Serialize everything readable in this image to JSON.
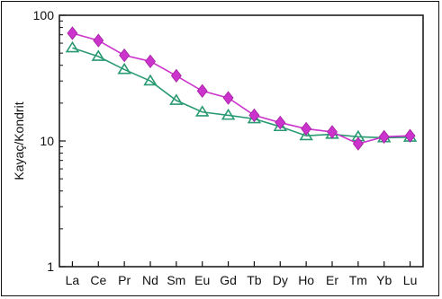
{
  "chart_data": {
    "type": "line",
    "title": "",
    "xlabel": "",
    "ylabel": "Kayaç/Kondrit",
    "y_scale": "log",
    "ylim": [
      1,
      100
    ],
    "y_ticks": [
      "1",
      "10",
      "100"
    ],
    "categories": [
      "La",
      "Ce",
      "Pr",
      "Nd",
      "Sm",
      "Eu",
      "Gd",
      "Tb",
      "Dy",
      "Ho",
      "Er",
      "Tm",
      "Yb",
      "Lu"
    ],
    "grid": false,
    "legend": "none",
    "series": [
      {
        "marker": "diamond",
        "color": "#cc33cc",
        "values": [
          72,
          63,
          48,
          43,
          33,
          25,
          22,
          16,
          14,
          12.5,
          11.8,
          9.5,
          10.8,
          11
        ]
      },
      {
        "marker": "triangle-open",
        "color": "#2a9a72",
        "values": [
          55,
          47,
          37,
          30,
          21,
          17,
          16,
          15,
          13,
          11,
          11.3,
          10.8,
          10.6,
          10.7
        ]
      }
    ]
  }
}
